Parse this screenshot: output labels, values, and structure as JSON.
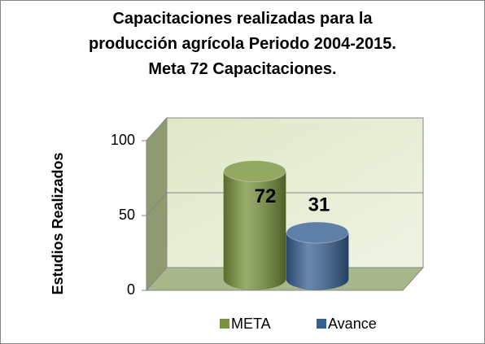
{
  "chart_data": {
    "type": "bar",
    "title": "Capacitaciones realizadas para la producción agrícola Periodo 2004-2015. Meta 72 Capacitaciones.",
    "y_label": "Estudios Realizados",
    "categories": [
      null
    ],
    "series": [
      {
        "name": "META",
        "color": "#77933c",
        "values": [
          72
        ]
      },
      {
        "name": "Avance",
        "color": "#376092",
        "values": [
          31
        ]
      }
    ],
    "ylim": [
      0,
      100
    ],
    "yticks": [
      0,
      50,
      100
    ],
    "grid": true,
    "legend": "bottom"
  }
}
